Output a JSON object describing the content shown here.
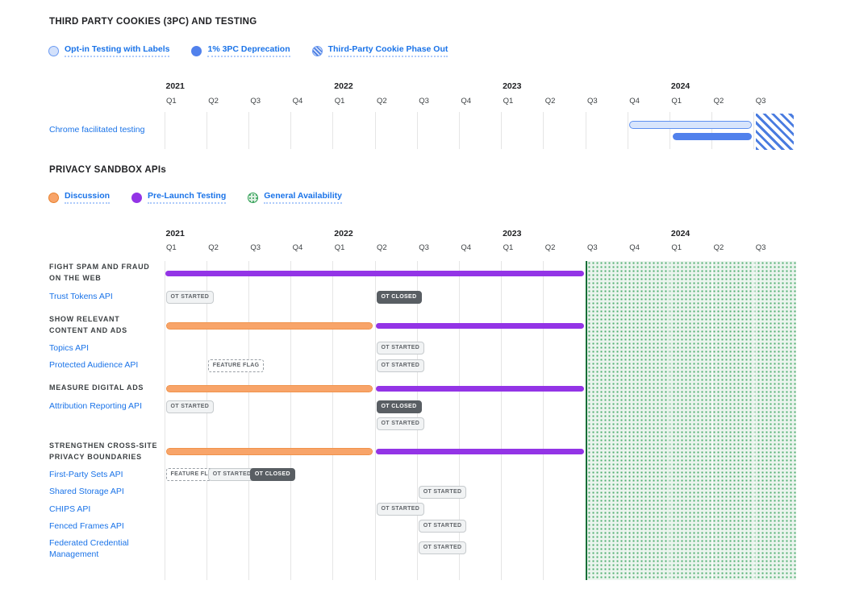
{
  "colors": {
    "link_blue": "#1a73e8",
    "opt_in_blue_fill": "#d8e5fc",
    "deprecation_blue": "#5181ec",
    "phase_out_hatch_blue": "#4a7ce0",
    "discussion_orange": "#f8a469",
    "discussion_orange_border": "#e8822f",
    "prelaunch_purple": "#9334e6",
    "ga_green": "#2d9e53",
    "ga_region_bg": "#ebf4ee",
    "badge_open_bg": "#f1f3f4",
    "badge_closed_bg": "#595e63",
    "gridline": "#e5e5e5"
  },
  "chart_data": [
    {
      "type": "bar",
      "variant": "gantt-timeline",
      "title": "THIRD PARTY COOKIES (3PC) AND TESTING",
      "legend": [
        {
          "label": "Opt-in Testing with Labels",
          "swatch": "outline-blue"
        },
        {
          "label": "1% 3PC Deprecation",
          "swatch": "solid-blue"
        },
        {
          "label": "Third-Party Cookie Phase Out",
          "swatch": "hatch-blue"
        }
      ],
      "x_axis": {
        "years": [
          "2021",
          "2022",
          "2023",
          "2024"
        ],
        "quarter_labels": [
          "Q1",
          "Q2",
          "Q3",
          "Q4",
          "Q1",
          "Q2",
          "Q3",
          "Q4",
          "Q1",
          "Q2",
          "Q3",
          "Q4",
          "Q1",
          "Q2",
          "Q3"
        ],
        "range": [
          "2021 Q1",
          "2024 Q3"
        ],
        "grid": true
      },
      "rows": [
        {
          "label": "Chrome facilitated testing",
          "bars": [
            {
              "phase": "Opt-in Testing with Labels",
              "start": "2023 Q4",
              "end": "2024 Q2",
              "style": "outline-blue"
            },
            {
              "phase": "1% 3PC Deprecation",
              "start": "2024 Q1",
              "end": "2024 Q2",
              "style": "solid-blue"
            },
            {
              "phase": "Third-Party Cookie Phase Out",
              "start": "2024 Q3",
              "end": "2024 Q3",
              "style": "hatch-blue"
            }
          ]
        }
      ]
    },
    {
      "type": "bar",
      "variant": "gantt-timeline",
      "title": "PRIVACY SANDBOX APIs",
      "legend": [
        {
          "label": "Discussion",
          "swatch": "outline-orange"
        },
        {
          "label": "Pre-Launch Testing",
          "swatch": "solid-purple"
        },
        {
          "label": "General Availability",
          "swatch": "dot-green"
        }
      ],
      "x_axis": {
        "years": [
          "2021",
          "2022",
          "2023",
          "2024"
        ],
        "quarter_labels": [
          "Q1",
          "Q2",
          "Q3",
          "Q4",
          "Q1",
          "Q2",
          "Q3",
          "Q4",
          "Q1",
          "Q2",
          "Q3",
          "Q4",
          "Q1",
          "Q2",
          "Q3"
        ],
        "range": [
          "2021 Q1",
          "2024 Q3"
        ],
        "grid": true
      },
      "ga_region": {
        "phase": "General Availability",
        "start": "2023 Q3",
        "end": "2024 Q3"
      },
      "groups": [
        {
          "label": "FIGHT SPAM AND FRAUD ON THE WEB",
          "lines": [
            "FIGHT SPAM AND FRAUD",
            "ON THE WEB"
          ],
          "bars": [
            {
              "phase": "Pre-Launch Testing",
              "start": "2021 Q1",
              "end": "2023 Q2",
              "style": "solid-purple"
            }
          ],
          "apis": [
            {
              "label": "Trust Tokens API",
              "milestones": [
                {
                  "label": "OT STARTED",
                  "quarter": "2021 Q1",
                  "style": "open",
                  "row": 0
                },
                {
                  "label": "OT CLOSED",
                  "quarter": "2022 Q2",
                  "style": "closed",
                  "row": 0
                }
              ]
            }
          ]
        },
        {
          "label": "SHOW RELEVANT CONTENT AND ADS",
          "lines": [
            "SHOW RELEVANT",
            "CONTENT AND ADS"
          ],
          "bars": [
            {
              "phase": "Discussion",
              "start": "2021 Q1",
              "end": "2022 Q1",
              "style": "outline-orange"
            },
            {
              "phase": "Pre-Launch Testing",
              "start": "2022 Q2",
              "end": "2023 Q2",
              "style": "solid-purple"
            }
          ],
          "apis": [
            {
              "label": "Topics API",
              "milestones": [
                {
                  "label": "OT STARTED",
                  "quarter": "2022 Q2",
                  "style": "open",
                  "row": 0
                }
              ]
            },
            {
              "label": "Protected Audience API",
              "milestones": [
                {
                  "label": "FEATURE FLAG",
                  "quarter": "2021 Q2",
                  "style": "flag",
                  "row": 0
                },
                {
                  "label": "OT STARTED",
                  "quarter": "2022 Q2",
                  "style": "open",
                  "row": 0
                }
              ]
            }
          ]
        },
        {
          "label": "MEASURE DIGITAL ADS",
          "lines": [
            "MEASURE DIGITAL ADS"
          ],
          "bars": [
            {
              "phase": "Discussion",
              "start": "2021 Q1",
              "end": "2022 Q1",
              "style": "outline-orange"
            },
            {
              "phase": "Pre-Launch Testing",
              "start": "2022 Q2",
              "end": "2023 Q2",
              "style": "solid-purple"
            }
          ],
          "apis": [
            {
              "label": "Attribution Reporting API",
              "milestones": [
                {
                  "label": "OT STARTED",
                  "quarter": "2021 Q1",
                  "style": "open",
                  "row": 0
                },
                {
                  "label": "OT CLOSED",
                  "quarter": "2022 Q2",
                  "style": "closed",
                  "row": 0
                },
                {
                  "label": "OT STARTED",
                  "quarter": "2022 Q2",
                  "style": "open",
                  "row": 1
                }
              ]
            }
          ]
        },
        {
          "label": "STRENGTHEN CROSS-SITE PRIVACY BOUNDARIES",
          "lines": [
            "STRENGTHEN CROSS-SITE",
            "PRIVACY BOUNDARIES"
          ],
          "bars": [
            {
              "phase": "Discussion",
              "start": "2021 Q1",
              "end": "2022 Q1",
              "style": "outline-orange"
            },
            {
              "phase": "Pre-Launch Testing",
              "start": "2022 Q2",
              "end": "2023 Q2",
              "style": "solid-purple"
            }
          ],
          "apis": [
            {
              "label": "First-Party Sets API",
              "milestones": [
                {
                  "label": "FEATURE FLAG",
                  "quarter": "2021 Q1",
                  "style": "flag",
                  "row": 0
                },
                {
                  "label": "OT STARTED",
                  "quarter": "2021 Q2",
                  "style": "open",
                  "row": 0
                },
                {
                  "label": "OT CLOSED",
                  "quarter": "2021 Q3",
                  "style": "closed",
                  "row": 0
                }
              ]
            },
            {
              "label": "Shared Storage API",
              "milestones": [
                {
                  "label": "OT STARTED",
                  "quarter": "2022 Q3",
                  "style": "open",
                  "row": 0
                }
              ]
            },
            {
              "label": "CHIPS API",
              "milestones": [
                {
                  "label": "OT STARTED",
                  "quarter": "2022 Q2",
                  "style": "open",
                  "row": 0
                }
              ]
            },
            {
              "label": "Fenced Frames API",
              "milestones": [
                {
                  "label": "OT STARTED",
                  "quarter": "2022 Q3",
                  "style": "open",
                  "row": 0
                }
              ]
            },
            {
              "label": "Federated Credential Management",
              "lines": [
                "Federated Credential",
                "Management"
              ],
              "milestones": [
                {
                  "label": "OT STARTED",
                  "quarter": "2022 Q3",
                  "style": "open",
                  "row": 0
                }
              ]
            }
          ]
        }
      ]
    }
  ]
}
